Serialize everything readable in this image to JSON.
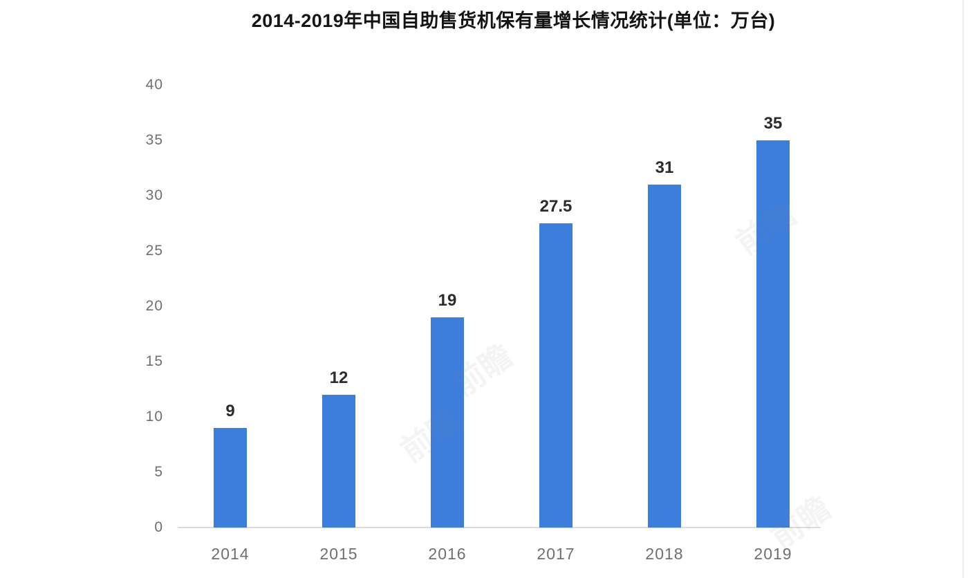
{
  "chart_data": {
    "type": "bar",
    "title": "2014-2019年中国自助售货机保有量增长情况统计(单位：万台)",
    "categories": [
      "2014",
      "2015",
      "2016",
      "2017",
      "2018",
      "2019"
    ],
    "values": [
      9,
      12,
      19,
      27.5,
      31,
      35
    ],
    "value_labels": [
      "9",
      "12",
      "19",
      "27.5",
      "31",
      "35"
    ],
    "unit": "万台",
    "xlabel": "",
    "ylabel": "",
    "ylim": [
      0,
      40
    ],
    "yticks": [
      0,
      5,
      10,
      15,
      20,
      25,
      30,
      35,
      40
    ],
    "grid": false,
    "legend": "none",
    "bar_color": "#3d7edc",
    "axis_line_color": "#dcdcdc",
    "tick_label_color": "#6f6f6f",
    "value_label_color": "#2b2b2b",
    "title_color": "#141414"
  },
  "watermark": {
    "text": "前瞻"
  }
}
